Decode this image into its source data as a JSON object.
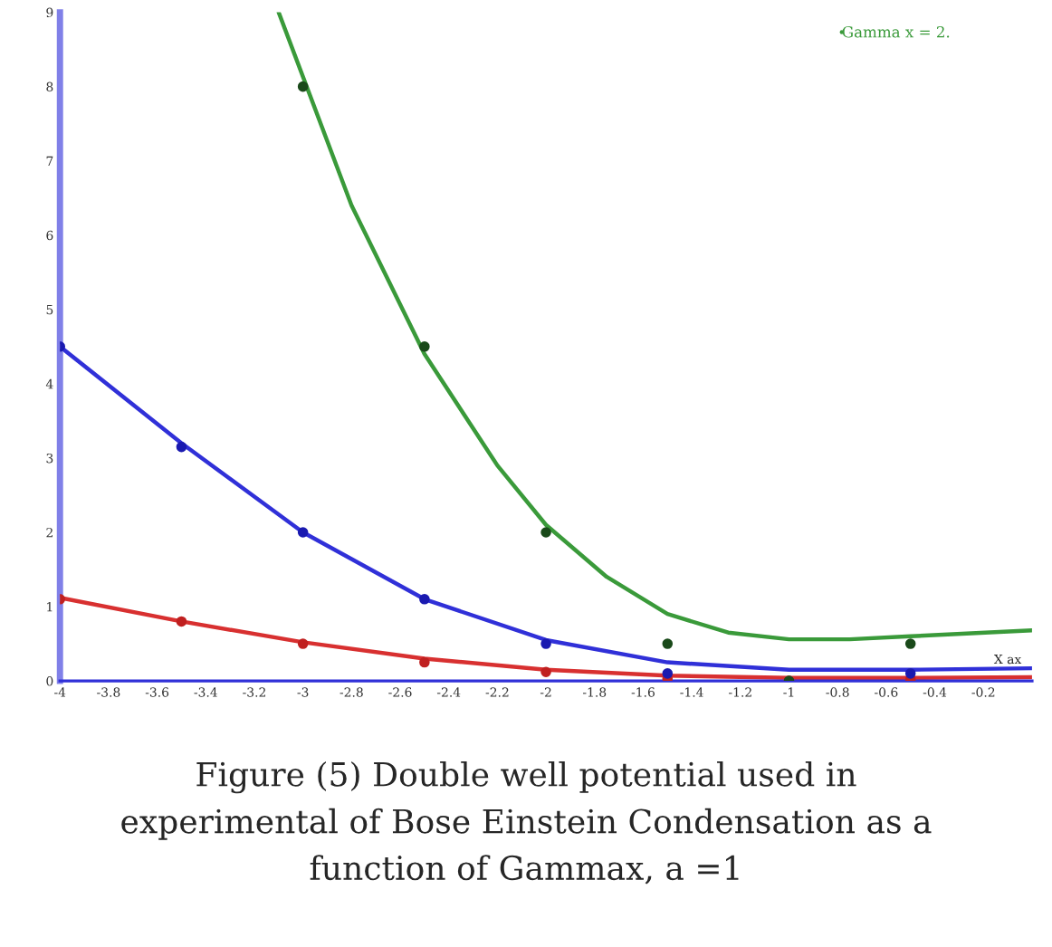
{
  "chart_data": {
    "type": "line",
    "xlabel": "X ax",
    "series": [
      {
        "color": "#d83030",
        "x": [
          -4,
          -3.5,
          -3,
          -2.5,
          -2,
          -1.5,
          -1,
          -0.5,
          0
        ],
        "values": [
          1.12,
          0.8,
          0.52,
          0.3,
          0.15,
          0.07,
          0.04,
          0.04,
          0.05
        ]
      },
      {
        "color": "#3030d8",
        "x": [
          -4,
          -3.5,
          -3,
          -2.5,
          -2,
          -1.5,
          -1,
          -0.5,
          0
        ],
        "values": [
          4.5,
          3.2,
          2.0,
          1.1,
          0.55,
          0.25,
          0.15,
          0.15,
          0.17
        ]
      },
      {
        "name": "Gamma x = 2.",
        "color": "#3a9a3a",
        "x": [
          -3.1,
          -2.8,
          -2.5,
          -2.2,
          -2,
          -1.75,
          -1.5,
          -1.25,
          -1,
          -0.75,
          -0.5,
          -0.25,
          0
        ],
        "values": [
          9,
          6.4,
          4.4,
          2.9,
          2.1,
          1.4,
          0.9,
          0.65,
          0.56,
          0.56,
          0.6,
          0.64,
          0.68
        ]
      },
      {
        "type": "scatter",
        "marker": "circle",
        "color": "#c02020",
        "x": [
          -4,
          -3.5,
          -3,
          -2.5,
          -2,
          -1.5,
          -1,
          -0.5
        ],
        "values": [
          1.1,
          0.8,
          0.5,
          0.25,
          0.12,
          0.03,
          0.0,
          0.02
        ]
      },
      {
        "type": "scatter",
        "marker": "circle",
        "color": "#1a1ab0",
        "x": [
          -4,
          -3.5,
          -3,
          -2.5,
          -2,
          -1.5,
          -0.5
        ],
        "values": [
          4.5,
          3.15,
          2.0,
          1.1,
          0.5,
          0.1,
          0.1
        ]
      },
      {
        "type": "scatter",
        "marker": "circle",
        "color": "#1a4a1a",
        "x": [
          -3,
          -2.5,
          -2,
          -1.5,
          -1,
          -0.5
        ],
        "values": [
          8,
          4.5,
          2.0,
          0.5,
          0.0,
          0.5
        ]
      }
    ],
    "xlim": [
      -4,
      0
    ],
    "ylim": [
      0,
      9
    ],
    "xticks": [
      -4,
      -3.8,
      -3.6,
      -3.4,
      -3.2,
      -3,
      -2.8,
      -2.6,
      -2.4,
      -2.2,
      -2,
      -1.8,
      -1.6,
      -1.4,
      -1.2,
      -1,
      -0.8,
      -0.6,
      -0.4,
      -0.2
    ],
    "yticks": [
      0,
      1,
      2,
      3,
      4,
      5,
      6,
      7,
      8,
      9
    ],
    "legend": "top right",
    "grid": false,
    "annotations": [
      "Figure (5) Double well potential used in\nexperimental of Bose Einstein Condensation as a\nfunction of Gammax, a =1"
    ]
  }
}
